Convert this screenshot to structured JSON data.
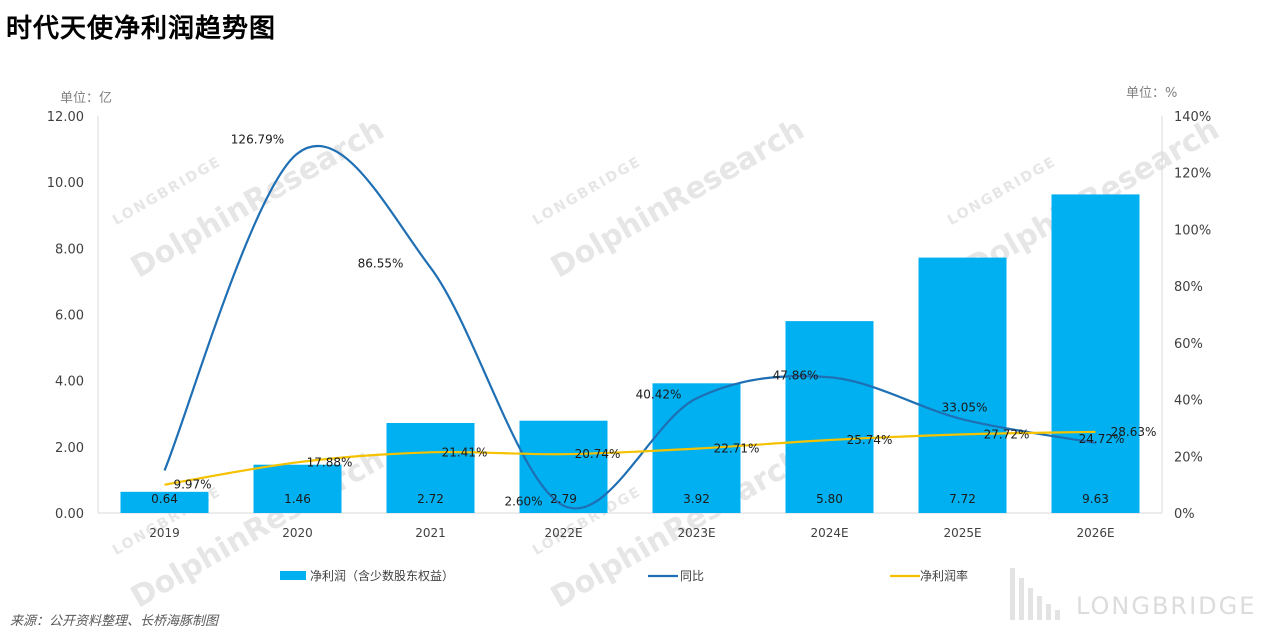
{
  "title": "时代天使净利润趋势图",
  "unit_left": "单位：亿",
  "unit_right": "单位：%",
  "source": "来源：公开资料整理、长桥海豚制图",
  "brand": "LONGBRIDGE",
  "watermark": {
    "small": "LONGBRIDGE",
    "big": "DolphinResearch"
  },
  "chart_data": {
    "type": "bar",
    "categories": [
      "2019",
      "2020",
      "2021",
      "2022E",
      "2023E",
      "2024E",
      "2025E",
      "2026E"
    ],
    "y_left": {
      "min": 0,
      "max": 12,
      "step": 2,
      "decimals": 2
    },
    "y_right": {
      "min": 0,
      "max": 140,
      "step": 20,
      "suffix": "%"
    },
    "grid": false,
    "legend_position": "bottom",
    "series": [
      {
        "name": "净利润（含少数股东权益）",
        "type": "bar",
        "axis": "left",
        "color": "#00b0f0",
        "values": [
          0.64,
          1.46,
          2.72,
          2.79,
          3.92,
          5.8,
          7.72,
          9.63
        ],
        "labels": [
          "0.64",
          "1.46",
          "2.72",
          "2.79",
          "3.92",
          "5.80",
          "7.72",
          "9.63"
        ]
      },
      {
        "name": "同比",
        "type": "line",
        "axis": "right",
        "color": "#1f6fb4",
        "values": [
          null,
          126.79,
          86.55,
          2.6,
          40.42,
          47.86,
          33.05,
          24.72
        ],
        "labels": [
          "",
          "126.79%",
          "86.55%",
          "2.60%",
          "40.42%",
          "47.86%",
          "33.05%",
          "24.72%"
        ]
      },
      {
        "name": "净利润率",
        "type": "line",
        "axis": "right",
        "color": "#f5c200",
        "values": [
          9.97,
          17.88,
          21.41,
          20.74,
          22.71,
          25.74,
          27.72,
          28.63
        ],
        "labels": [
          "9.97%",
          "17.88%",
          "21.41%",
          "20.74%",
          "22.71%",
          "25.74%",
          "27.72%",
          "28.63%"
        ]
      }
    ]
  }
}
